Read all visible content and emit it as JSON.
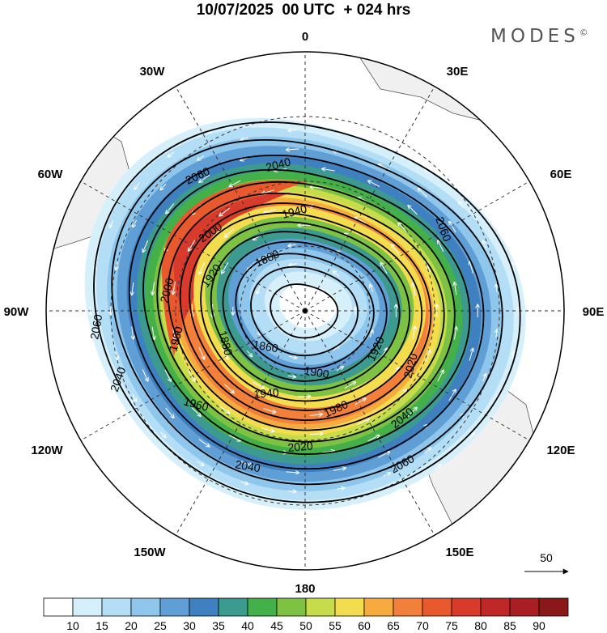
{
  "title": "10/07/2025  00 UTC  + 024 hrs",
  "brand": "MODES",
  "brand_mark": "©",
  "longitude_labels": [
    "0",
    "30E",
    "60E",
    "90E",
    "120E",
    "150E",
    "180",
    "150W",
    "120W",
    "90W",
    "60W",
    "30W"
  ],
  "contour_labels": [
    "2060",
    "2040",
    "1940",
    "1880",
    "2000",
    "1920",
    "2060",
    "2000",
    "1960",
    "1880",
    "1860",
    "1900",
    "1920",
    "1940",
    "1960",
    "1980",
    "2020",
    "2040",
    "2060",
    "2040",
    "2020",
    "2060",
    "2040"
  ],
  "reference_vector": {
    "label": "50"
  },
  "colorbar": {
    "labels": [
      "10",
      "15",
      "20",
      "25",
      "30",
      "35",
      "40",
      "45",
      "50",
      "55",
      "60",
      "65",
      "70",
      "75",
      "80",
      "85",
      "90"
    ],
    "colors": [
      "#ffffff",
      "#d6f0fb",
      "#b3def5",
      "#8ec6ec",
      "#5f9fd6",
      "#3f80c0",
      "#3d9a8f",
      "#43b04a",
      "#7dc242",
      "#c6dc4a",
      "#f4dc4f",
      "#f6ab3f",
      "#f2803a",
      "#e85a2e",
      "#d83b2c",
      "#c02828",
      "#a81e22",
      "#8a1818"
    ]
  },
  "colors": {
    "land": "#f0f0f0",
    "grid": "#333333",
    "contour": "#000000",
    "wind_arrows": "#ffffff"
  }
}
